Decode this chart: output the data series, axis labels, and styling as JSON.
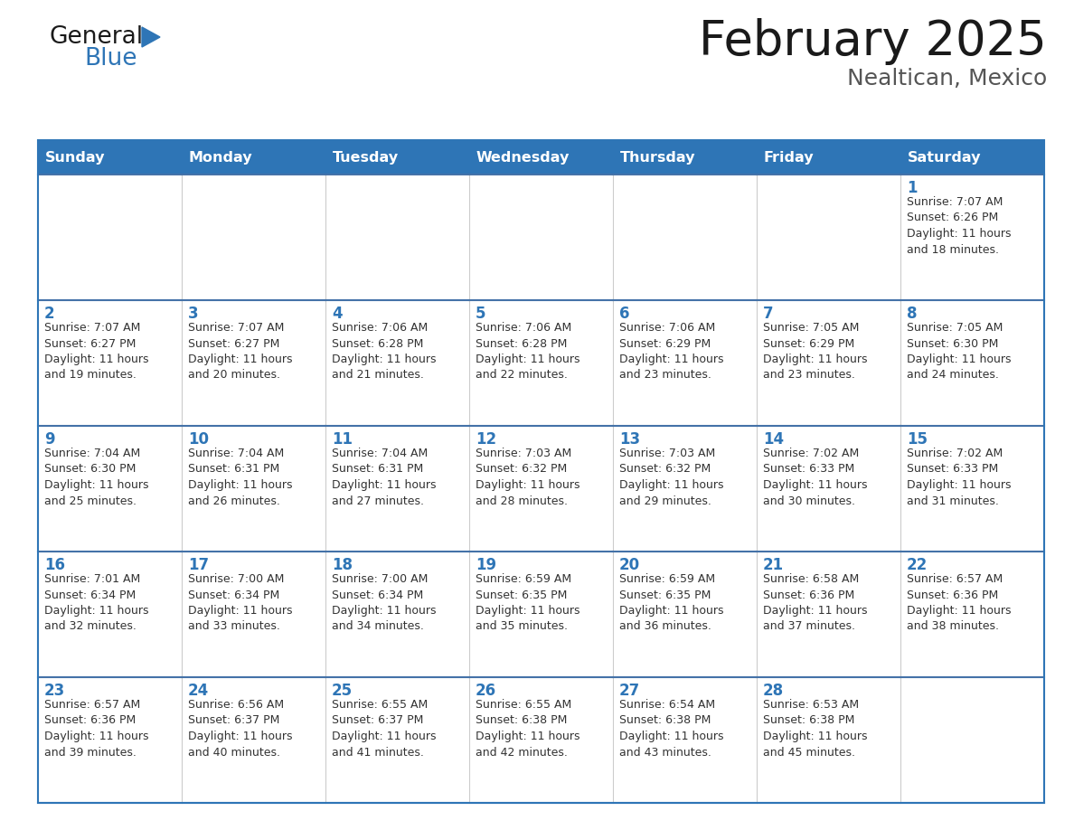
{
  "title": "February 2025",
  "subtitle": "Nealtican, Mexico",
  "header_bg": "#2E75B6",
  "header_text": "#FFFFFF",
  "cell_bg": "#FFFFFF",
  "border_color": "#2E75B6",
  "row_border_color": "#4472A8",
  "col_border_color": "#CCCCCC",
  "title_color": "#1A1A1A",
  "subtitle_color": "#555555",
  "day_number_color": "#2E75B6",
  "cell_text_color": "#333333",
  "logo_general_color": "#1A1A1A",
  "logo_blue_color": "#2E75B6",
  "day_names": [
    "Sunday",
    "Monday",
    "Tuesday",
    "Wednesday",
    "Thursday",
    "Friday",
    "Saturday"
  ],
  "weeks": [
    [
      {
        "day": null,
        "info": ""
      },
      {
        "day": null,
        "info": ""
      },
      {
        "day": null,
        "info": ""
      },
      {
        "day": null,
        "info": ""
      },
      {
        "day": null,
        "info": ""
      },
      {
        "day": null,
        "info": ""
      },
      {
        "day": 1,
        "info": "Sunrise: 7:07 AM\nSunset: 6:26 PM\nDaylight: 11 hours\nand 18 minutes."
      }
    ],
    [
      {
        "day": 2,
        "info": "Sunrise: 7:07 AM\nSunset: 6:27 PM\nDaylight: 11 hours\nand 19 minutes."
      },
      {
        "day": 3,
        "info": "Sunrise: 7:07 AM\nSunset: 6:27 PM\nDaylight: 11 hours\nand 20 minutes."
      },
      {
        "day": 4,
        "info": "Sunrise: 7:06 AM\nSunset: 6:28 PM\nDaylight: 11 hours\nand 21 minutes."
      },
      {
        "day": 5,
        "info": "Sunrise: 7:06 AM\nSunset: 6:28 PM\nDaylight: 11 hours\nand 22 minutes."
      },
      {
        "day": 6,
        "info": "Sunrise: 7:06 AM\nSunset: 6:29 PM\nDaylight: 11 hours\nand 23 minutes."
      },
      {
        "day": 7,
        "info": "Sunrise: 7:05 AM\nSunset: 6:29 PM\nDaylight: 11 hours\nand 23 minutes."
      },
      {
        "day": 8,
        "info": "Sunrise: 7:05 AM\nSunset: 6:30 PM\nDaylight: 11 hours\nand 24 minutes."
      }
    ],
    [
      {
        "day": 9,
        "info": "Sunrise: 7:04 AM\nSunset: 6:30 PM\nDaylight: 11 hours\nand 25 minutes."
      },
      {
        "day": 10,
        "info": "Sunrise: 7:04 AM\nSunset: 6:31 PM\nDaylight: 11 hours\nand 26 minutes."
      },
      {
        "day": 11,
        "info": "Sunrise: 7:04 AM\nSunset: 6:31 PM\nDaylight: 11 hours\nand 27 minutes."
      },
      {
        "day": 12,
        "info": "Sunrise: 7:03 AM\nSunset: 6:32 PM\nDaylight: 11 hours\nand 28 minutes."
      },
      {
        "day": 13,
        "info": "Sunrise: 7:03 AM\nSunset: 6:32 PM\nDaylight: 11 hours\nand 29 minutes."
      },
      {
        "day": 14,
        "info": "Sunrise: 7:02 AM\nSunset: 6:33 PM\nDaylight: 11 hours\nand 30 minutes."
      },
      {
        "day": 15,
        "info": "Sunrise: 7:02 AM\nSunset: 6:33 PM\nDaylight: 11 hours\nand 31 minutes."
      }
    ],
    [
      {
        "day": 16,
        "info": "Sunrise: 7:01 AM\nSunset: 6:34 PM\nDaylight: 11 hours\nand 32 minutes."
      },
      {
        "day": 17,
        "info": "Sunrise: 7:00 AM\nSunset: 6:34 PM\nDaylight: 11 hours\nand 33 minutes."
      },
      {
        "day": 18,
        "info": "Sunrise: 7:00 AM\nSunset: 6:34 PM\nDaylight: 11 hours\nand 34 minutes."
      },
      {
        "day": 19,
        "info": "Sunrise: 6:59 AM\nSunset: 6:35 PM\nDaylight: 11 hours\nand 35 minutes."
      },
      {
        "day": 20,
        "info": "Sunrise: 6:59 AM\nSunset: 6:35 PM\nDaylight: 11 hours\nand 36 minutes."
      },
      {
        "day": 21,
        "info": "Sunrise: 6:58 AM\nSunset: 6:36 PM\nDaylight: 11 hours\nand 37 minutes."
      },
      {
        "day": 22,
        "info": "Sunrise: 6:57 AM\nSunset: 6:36 PM\nDaylight: 11 hours\nand 38 minutes."
      }
    ],
    [
      {
        "day": 23,
        "info": "Sunrise: 6:57 AM\nSunset: 6:36 PM\nDaylight: 11 hours\nand 39 minutes."
      },
      {
        "day": 24,
        "info": "Sunrise: 6:56 AM\nSunset: 6:37 PM\nDaylight: 11 hours\nand 40 minutes."
      },
      {
        "day": 25,
        "info": "Sunrise: 6:55 AM\nSunset: 6:37 PM\nDaylight: 11 hours\nand 41 minutes."
      },
      {
        "day": 26,
        "info": "Sunrise: 6:55 AM\nSunset: 6:38 PM\nDaylight: 11 hours\nand 42 minutes."
      },
      {
        "day": 27,
        "info": "Sunrise: 6:54 AM\nSunset: 6:38 PM\nDaylight: 11 hours\nand 43 minutes."
      },
      {
        "day": 28,
        "info": "Sunrise: 6:53 AM\nSunset: 6:38 PM\nDaylight: 11 hours\nand 45 minutes."
      },
      {
        "day": null,
        "info": ""
      }
    ]
  ]
}
